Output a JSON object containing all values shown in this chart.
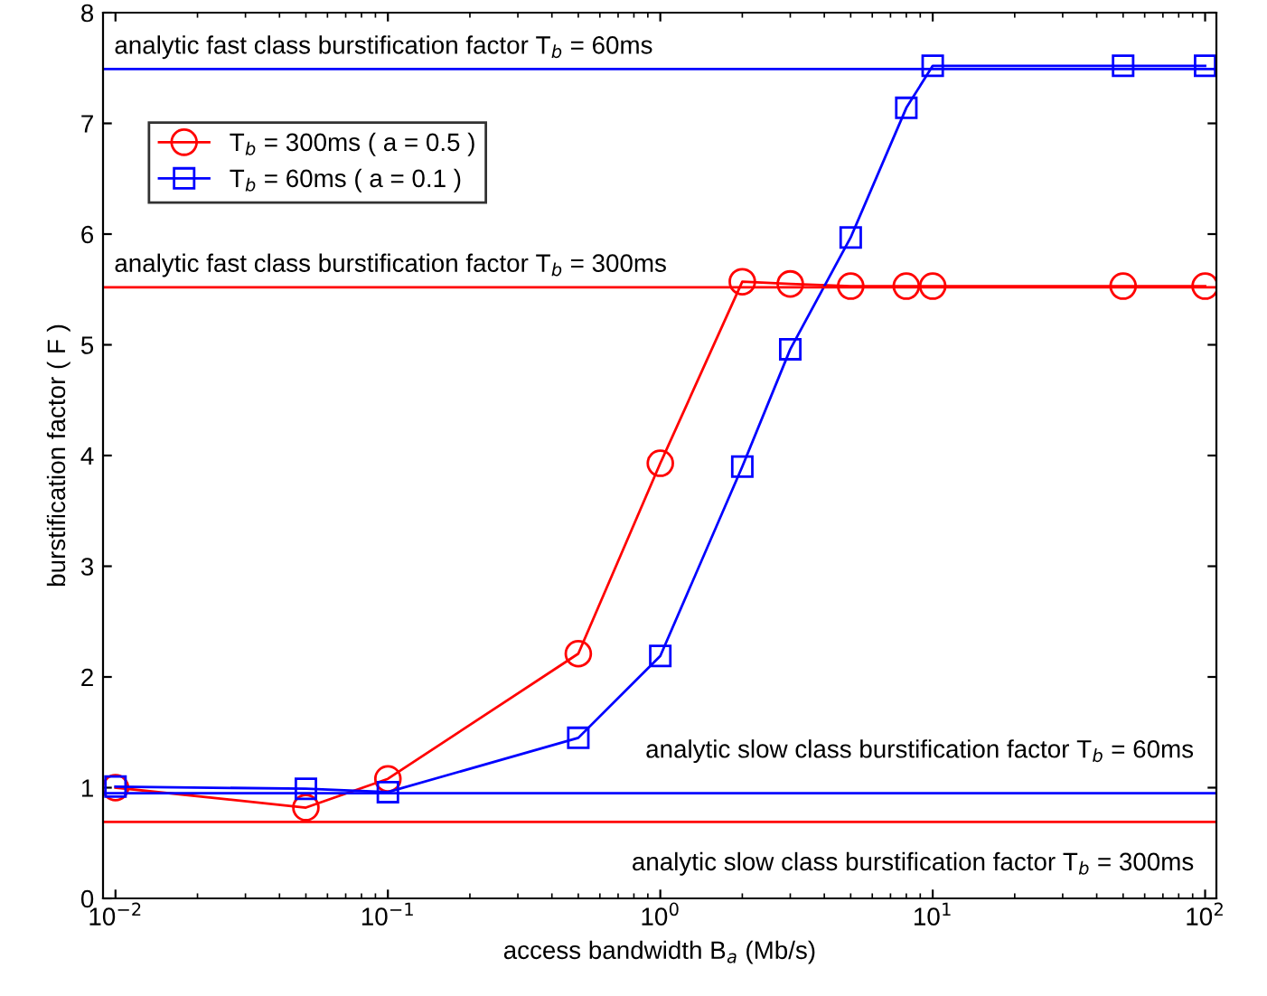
{
  "chart_data": {
    "type": "line",
    "xlabel": "access bandwidth B$_{a}$ (Mb/s)",
    "ylabel": "burstification factor ( F )",
    "log": "x",
    "xlim": [
      0.009,
      110
    ],
    "xticks": [
      {
        "value": 0.01,
        "label": "10$^{−2}$"
      },
      {
        "value": 0.1,
        "label": "10$^{−1}$"
      },
      {
        "value": 1,
        "label": "10$^{0}$"
      },
      {
        "value": 10,
        "label": "10$^{1}$"
      },
      {
        "value": 100,
        "label": "10$^{2}$"
      }
    ],
    "ylim": [
      0,
      8
    ],
    "yticks": [
      0,
      1,
      2,
      3,
      4,
      5,
      6,
      7,
      8
    ],
    "grid": false,
    "legend": "top left",
    "line_style": "solid",
    "x": [
      0.01,
      0.05,
      0.1,
      0.5,
      1,
      2,
      3,
      5,
      8,
      10,
      50,
      100
    ],
    "series": [
      {
        "name": "T$_{b}$ = 300ms ( a = 0.5 )",
        "color": "#ff0000",
        "marker": "circle",
        "values": [
          1.0,
          0.82,
          1.08,
          2.21,
          3.93,
          5.57,
          5.55,
          5.53,
          5.53,
          5.53,
          5.53,
          5.53
        ]
      },
      {
        "name": "T$_{b}$ = 60ms ( a = 0.1 )",
        "color": "#0000ff",
        "marker": "square",
        "values": [
          1.01,
          0.99,
          0.96,
          1.45,
          2.19,
          3.9,
          4.96,
          5.97,
          7.14,
          7.52,
          7.52,
          7.52
        ]
      }
    ],
    "ref_lines": [
      {
        "axis": "y",
        "value": 7.49,
        "color": "#0000ff"
      },
      {
        "axis": "y",
        "value": 5.52,
        "color": "#ff0000"
      },
      {
        "axis": "y",
        "value": 0.95,
        "color": "#0000ff"
      },
      {
        "axis": "y",
        "value": 0.69,
        "color": "#ff0000"
      }
    ],
    "annotations": [
      {
        "text": "analytic fast class burstification factor T$_{b}$ = 60ms",
        "y": 7.49
      },
      {
        "text": "analytic fast class burstification factor T$_{b}$ = 300ms",
        "y": 5.52
      },
      {
        "text": "analytic slow class burstification factor T$_{b}$ = 60ms",
        "y": 0.95
      },
      {
        "text": "analytic slow class burstification factor T$_{b}$ = 300ms",
        "y": 0.69
      }
    ]
  }
}
